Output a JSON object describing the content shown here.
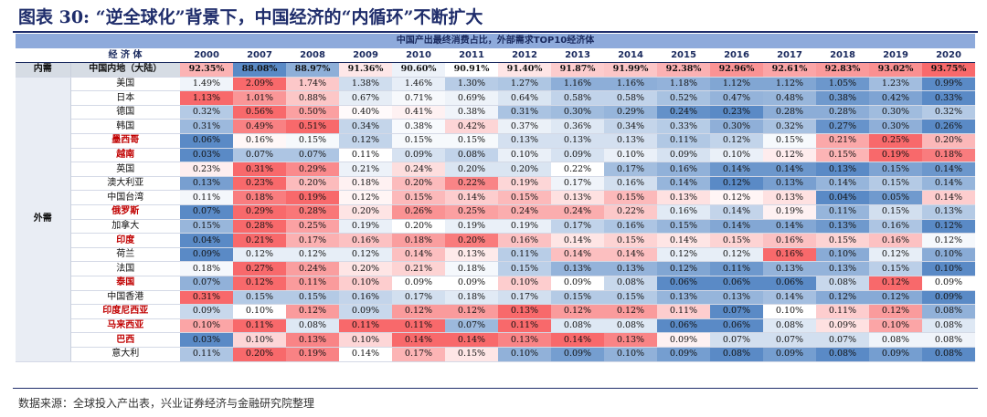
{
  "title": "图表 30: “逆全球化”背景下，中国经济的“内循环”不断扩大",
  "source": "数据来源：全球投入产出表，兴业证券经济与金融研究院整理",
  "colors": {
    "high": "#f8696b",
    "mid": "#ffffff",
    "low": "#5a8ac6",
    "header_band": "#8eaadb",
    "emphasis_text": "#c00000"
  },
  "chart_data": {
    "type": "table",
    "title": "中国产出最终消费占比，外部需求TOP10经济体",
    "group_header": "",
    "column_header": "经 济 体",
    "years": [
      "2000",
      "2007",
      "2008",
      "2009",
      "2010",
      "2011",
      "2012",
      "2013",
      "2014",
      "2015",
      "2016",
      "2017",
      "2018",
      "2019",
      "2020"
    ],
    "groups": [
      {
        "label": "内需",
        "rows": [
          {
            "name": "中国内地（大陆）",
            "emphasis": false,
            "values": [
              "92.35%",
              "88.08%",
              "88.97%",
              "91.36%",
              "90.60%",
              "90.91%",
              "91.40%",
              "91.87%",
              "91.99%",
              "92.38%",
              "92.96%",
              "92.61%",
              "92.83%",
              "93.02%",
              "93.75%"
            ]
          }
        ]
      },
      {
        "label": "外需",
        "rows": [
          {
            "name": "美国",
            "emphasis": false,
            "values": [
              "1.49%",
              "2.09%",
              "1.74%",
              "1.38%",
              "1.46%",
              "1.30%",
              "1.27%",
              "1.16%",
              "1.16%",
              "1.18%",
              "1.12%",
              "1.12%",
              "1.05%",
              "1.23%",
              "0.99%"
            ]
          },
          {
            "name": "日本",
            "emphasis": false,
            "values": [
              "1.13%",
              "1.01%",
              "0.88%",
              "0.67%",
              "0.71%",
              "0.69%",
              "0.64%",
              "0.58%",
              "0.58%",
              "0.52%",
              "0.47%",
              "0.48%",
              "0.38%",
              "0.42%",
              "0.33%"
            ]
          },
          {
            "name": "德国",
            "emphasis": false,
            "values": [
              "0.32%",
              "0.56%",
              "0.50%",
              "0.40%",
              "0.41%",
              "0.38%",
              "0.31%",
              "0.30%",
              "0.29%",
              "0.24%",
              "0.23%",
              "0.28%",
              "0.28%",
              "0.30%",
              "0.32%"
            ]
          },
          {
            "name": "韩国",
            "emphasis": false,
            "values": [
              "0.31%",
              "0.49%",
              "0.51%",
              "0.34%",
              "0.38%",
              "0.42%",
              "0.37%",
              "0.36%",
              "0.34%",
              "0.33%",
              "0.30%",
              "0.32%",
              "0.27%",
              "0.30%",
              "0.26%"
            ]
          },
          {
            "name": "墨西哥",
            "emphasis": true,
            "values": [
              "0.06%",
              "0.16%",
              "0.15%",
              "0.12%",
              "0.15%",
              "0.15%",
              "0.13%",
              "0.13%",
              "0.13%",
              "0.11%",
              "0.12%",
              "0.15%",
              "0.21%",
              "0.25%",
              "0.20%"
            ]
          },
          {
            "name": "越南",
            "emphasis": true,
            "values": [
              "0.03%",
              "0.07%",
              "0.07%",
              "0.11%",
              "0.09%",
              "0.08%",
              "0.10%",
              "0.09%",
              "0.10%",
              "0.09%",
              "0.10%",
              "0.12%",
              "0.15%",
              "0.19%",
              "0.18%"
            ]
          },
          {
            "name": "英国",
            "emphasis": false,
            "values": [
              "0.23%",
              "0.31%",
              "0.29%",
              "0.21%",
              "0.24%",
              "0.20%",
              "0.20%",
              "0.22%",
              "0.17%",
              "0.16%",
              "0.14%",
              "0.14%",
              "0.13%",
              "0.15%",
              "0.14%"
            ]
          },
          {
            "name": "澳大利亚",
            "emphasis": false,
            "values": [
              "0.13%",
              "0.23%",
              "0.20%",
              "0.18%",
              "0.20%",
              "0.22%",
              "0.19%",
              "0.17%",
              "0.16%",
              "0.14%",
              "0.12%",
              "0.13%",
              "0.14%",
              "0.15%",
              "0.14%"
            ]
          },
          {
            "name": "中国台湾",
            "emphasis": false,
            "values": [
              "0.11%",
              "0.18%",
              "0.19%",
              "0.12%",
              "0.15%",
              "0.14%",
              "0.15%",
              "0.13%",
              "0.15%",
              "0.13%",
              "0.12%",
              "0.13%",
              "0.04%",
              "0.05%",
              "0.14%"
            ]
          },
          {
            "name": "俄罗斯",
            "emphasis": true,
            "values": [
              "0.07%",
              "0.29%",
              "0.28%",
              "0.20%",
              "0.26%",
              "0.25%",
              "0.24%",
              "0.24%",
              "0.22%",
              "0.16%",
              "0.14%",
              "0.19%",
              "0.11%",
              "0.15%",
              "0.13%"
            ]
          },
          {
            "name": "加拿大",
            "emphasis": false,
            "values": [
              "0.15%",
              "0.28%",
              "0.25%",
              "0.19%",
              "0.20%",
              "0.19%",
              "0.19%",
              "0.17%",
              "0.16%",
              "0.15%",
              "0.14%",
              "0.14%",
              "0.13%",
              "0.16%",
              "0.12%"
            ]
          },
          {
            "name": "印度",
            "emphasis": true,
            "values": [
              "0.04%",
              "0.21%",
              "0.17%",
              "0.16%",
              "0.18%",
              "0.20%",
              "0.16%",
              "0.14%",
              "0.15%",
              "0.14%",
              "0.15%",
              "0.16%",
              "0.15%",
              "0.16%",
              "0.12%"
            ]
          },
          {
            "name": "荷兰",
            "emphasis": false,
            "values": [
              "0.09%",
              "0.12%",
              "0.12%",
              "0.12%",
              "0.14%",
              "0.13%",
              "0.11%",
              "0.14%",
              "0.14%",
              "0.12%",
              "0.12%",
              "0.16%",
              "0.10%",
              "0.12%",
              "0.10%"
            ]
          },
          {
            "name": "法国",
            "emphasis": false,
            "values": [
              "0.18%",
              "0.27%",
              "0.24%",
              "0.20%",
              "0.21%",
              "0.18%",
              "0.15%",
              "0.13%",
              "0.13%",
              "0.12%",
              "0.11%",
              "0.13%",
              "0.13%",
              "0.15%",
              "0.10%"
            ]
          },
          {
            "name": "泰国",
            "emphasis": true,
            "values": [
              "0.07%",
              "0.12%",
              "0.11%",
              "0.10%",
              "0.09%",
              "0.09%",
              "0.10%",
              "0.09%",
              "0.08%",
              "0.06%",
              "0.06%",
              "0.06%",
              "0.08%",
              "0.12%",
              "0.09%"
            ]
          },
          {
            "name": "中国香港",
            "emphasis": false,
            "values": [
              "0.31%",
              "0.15%",
              "0.15%",
              "0.16%",
              "0.17%",
              "0.18%",
              "0.17%",
              "0.15%",
              "0.15%",
              "0.13%",
              "0.13%",
              "0.14%",
              "0.12%",
              "0.12%",
              "0.09%"
            ]
          },
          {
            "name": "印度尼西亚",
            "emphasis": true,
            "values": [
              "0.09%",
              "0.10%",
              "0.12%",
              "0.09%",
              "0.12%",
              "0.12%",
              "0.13%",
              "0.12%",
              "0.12%",
              "0.11%",
              "0.07%",
              "0.10%",
              "0.11%",
              "0.12%",
              "0.08%"
            ]
          },
          {
            "name": "马来西亚",
            "emphasis": true,
            "values": [
              "0.10%",
              "0.11%",
              "0.08%",
              "0.11%",
              "0.11%",
              "0.07%",
              "0.11%",
              "0.08%",
              "0.08%",
              "0.06%",
              "0.06%",
              "0.08%",
              "0.09%",
              "0.10%",
              "0.08%"
            ]
          },
          {
            "name": "巴西",
            "emphasis": true,
            "values": [
              "0.03%",
              "0.10%",
              "0.13%",
              "0.10%",
              "0.14%",
              "0.14%",
              "0.13%",
              "0.14%",
              "0.13%",
              "0.09%",
              "0.07%",
              "0.07%",
              "0.07%",
              "0.08%",
              "0.08%"
            ]
          },
          {
            "name": "意大利",
            "emphasis": false,
            "values": [
              "0.11%",
              "0.20%",
              "0.19%",
              "0.14%",
              "0.17%",
              "0.15%",
              "0.10%",
              "0.09%",
              "0.10%",
              "0.09%",
              "0.08%",
              "0.09%",
              "0.08%",
              "0.09%",
              "0.08%"
            ]
          }
        ]
      }
    ]
  }
}
